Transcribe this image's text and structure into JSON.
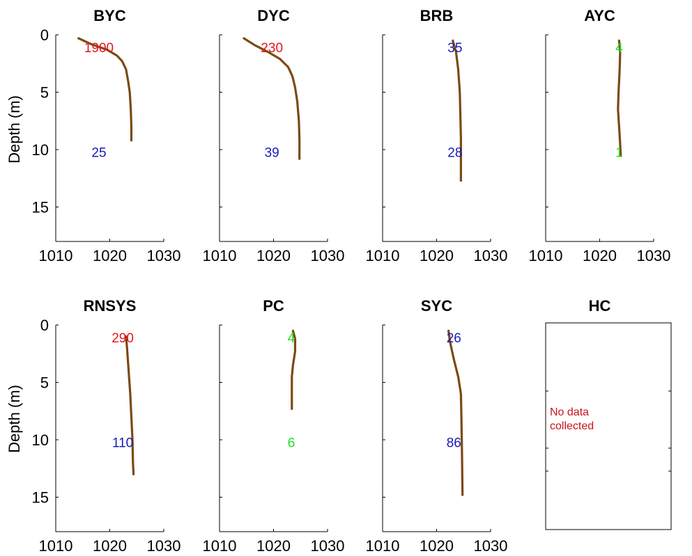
{
  "figure": {
    "ylabel": "Depth (m)"
  },
  "chart_data": [
    {
      "type": "line",
      "title": "BYC",
      "xlim": [
        1010,
        1030
      ],
      "ylim": [
        0,
        18
      ],
      "y_reversed": true,
      "xticks": [
        1010,
        1020,
        1030
      ],
      "yticks": [
        0,
        5,
        10,
        15
      ],
      "series": [
        {
          "color": "#7b4a12",
          "x": [
            1014.2,
            1016.5,
            1019.5,
            1021.3,
            1022.3,
            1023.0,
            1023.4,
            1023.7,
            1023.9,
            1024.0,
            1024.0
          ],
          "y": [
            0.3,
            0.8,
            1.3,
            1.8,
            2.3,
            3.0,
            4.0,
            5.0,
            6.5,
            8.0,
            9.2
          ]
        }
      ],
      "annotations": [
        {
          "text": "1900",
          "x": 1018.0,
          "y": 1.1,
          "color": "#e8141c"
        },
        {
          "text": "25",
          "x": 1018.0,
          "y": 10.2,
          "color": "#1a1ab8"
        }
      ]
    },
    {
      "type": "line",
      "title": "DYC",
      "xlim": [
        1010,
        1030
      ],
      "ylim": [
        0,
        18
      ],
      "y_reversed": true,
      "xticks": [
        1010,
        1020,
        1030
      ],
      "yticks": [
        0,
        5,
        10,
        15
      ],
      "series": [
        {
          "color": "#7b4a12",
          "x": [
            1014.5,
            1016.5,
            1019.0,
            1021.2,
            1022.7,
            1023.5,
            1024.0,
            1024.4,
            1024.7,
            1024.8,
            1024.8
          ],
          "y": [
            0.3,
            0.9,
            1.5,
            2.1,
            2.8,
            3.6,
            4.6,
            5.8,
            7.5,
            9.2,
            10.8
          ]
        }
      ],
      "annotations": [
        {
          "text": "230",
          "x": 1019.7,
          "y": 1.1,
          "color": "#e8141c"
        },
        {
          "text": "39",
          "x": 1019.7,
          "y": 10.2,
          "color": "#1a1ab8"
        }
      ]
    },
    {
      "type": "line",
      "title": "BRB",
      "xlim": [
        1010,
        1030
      ],
      "ylim": [
        0,
        18
      ],
      "y_reversed": true,
      "xticks": [
        1010,
        1020,
        1030
      ],
      "yticks": [
        0,
        5,
        10,
        15
      ],
      "series": [
        {
          "color": "#7b4a12",
          "x": [
            1023.0,
            1023.6,
            1024.0,
            1024.3,
            1024.4,
            1024.5,
            1024.5,
            1024.5
          ],
          "y": [
            0.5,
            1.5,
            3.0,
            5.0,
            7.0,
            9.0,
            11.0,
            12.7
          ]
        }
      ],
      "annotations": [
        {
          "text": "35",
          "x": 1023.4,
          "y": 1.1,
          "color": "#1a1ab8"
        },
        {
          "text": "28",
          "x": 1023.4,
          "y": 10.2,
          "color": "#1a1ab8"
        }
      ]
    },
    {
      "type": "line",
      "title": "AYC",
      "xlim": [
        1010,
        1030
      ],
      "ylim": [
        0,
        18
      ],
      "y_reversed": true,
      "xticks": [
        1010,
        1020,
        1030
      ],
      "yticks": [
        0,
        5,
        10,
        15
      ],
      "series": [
        {
          "color": "#7b4a12",
          "x": [
            1023.6,
            1023.8,
            1023.7,
            1023.5,
            1023.4,
            1023.6,
            1023.8,
            1023.9
          ],
          "y": [
            0.5,
            1.5,
            3.0,
            5.0,
            6.5,
            8.0,
            9.5,
            10.5
          ]
        }
      ],
      "annotations": [
        {
          "text": "4",
          "x": 1023.6,
          "y": 1.1,
          "color": "#22dd22"
        },
        {
          "text": "1",
          "x": 1023.6,
          "y": 10.2,
          "color": "#22dd22"
        }
      ]
    },
    {
      "type": "line",
      "title": "RNSYS",
      "xlim": [
        1010,
        1030
      ],
      "ylim": [
        0,
        18
      ],
      "y_reversed": true,
      "xticks": [
        1010,
        1020,
        1030
      ],
      "yticks": [
        0,
        5,
        10,
        15
      ],
      "series": [
        {
          "color": "#7b4a12",
          "x": [
            1023.0,
            1023.2,
            1023.5,
            1023.8,
            1024.0,
            1024.2,
            1024.3,
            1024.4
          ],
          "y": [
            1.0,
            2.0,
            4.0,
            6.0,
            8.0,
            10.0,
            12.0,
            13.0
          ]
        }
      ],
      "annotations": [
        {
          "text": "290",
          "x": 1022.4,
          "y": 1.1,
          "color": "#e8141c"
        },
        {
          "text": "110",
          "x": 1022.4,
          "y": 10.2,
          "color": "#1a1ab8"
        }
      ]
    },
    {
      "type": "line",
      "title": "PC",
      "xlim": [
        1010,
        1030
      ],
      "ylim": [
        0,
        18
      ],
      "y_reversed": true,
      "xticks": [
        1010,
        1020,
        1030
      ],
      "yticks": [
        0,
        5,
        10,
        15
      ],
      "series": [
        {
          "color": "#7b4a12",
          "x": [
            1023.6,
            1024.0,
            1024.0,
            1023.6,
            1023.4,
            1023.4,
            1023.4
          ],
          "y": [
            0.5,
            1.2,
            2.3,
            3.5,
            4.5,
            6.0,
            7.3
          ]
        }
      ],
      "annotations": [
        {
          "text": "4",
          "x": 1023.3,
          "y": 1.1,
          "color": "#22dd22"
        },
        {
          "text": "6",
          "x": 1023.3,
          "y": 10.2,
          "color": "#22dd22"
        }
      ]
    },
    {
      "type": "line",
      "title": "SYC",
      "xlim": [
        1010,
        1030
      ],
      "ylim": [
        0,
        18
      ],
      "y_reversed": true,
      "xticks": [
        1010,
        1020,
        1030
      ],
      "yticks": [
        0,
        5,
        10,
        15
      ],
      "series": [
        {
          "color": "#7b4a12",
          "x": [
            1022.2,
            1022.5,
            1023.2,
            1024.0,
            1024.5,
            1024.6,
            1024.7,
            1024.8
          ],
          "y": [
            0.5,
            1.5,
            3.0,
            4.5,
            6.0,
            8.0,
            11.0,
            14.8
          ]
        }
      ],
      "annotations": [
        {
          "text": "26",
          "x": 1023.2,
          "y": 1.1,
          "color": "#1a1ab8"
        },
        {
          "text": "86",
          "x": 1023.2,
          "y": 10.2,
          "color": "#1a1ab8"
        }
      ]
    },
    {
      "type": "line",
      "title": "HC",
      "xlim": [
        1010,
        1030
      ],
      "ylim": [
        0,
        18
      ],
      "y_reversed": true,
      "empty": true,
      "note": [
        "No data",
        "collected"
      ],
      "note_color": "#c8141c",
      "series": []
    }
  ]
}
